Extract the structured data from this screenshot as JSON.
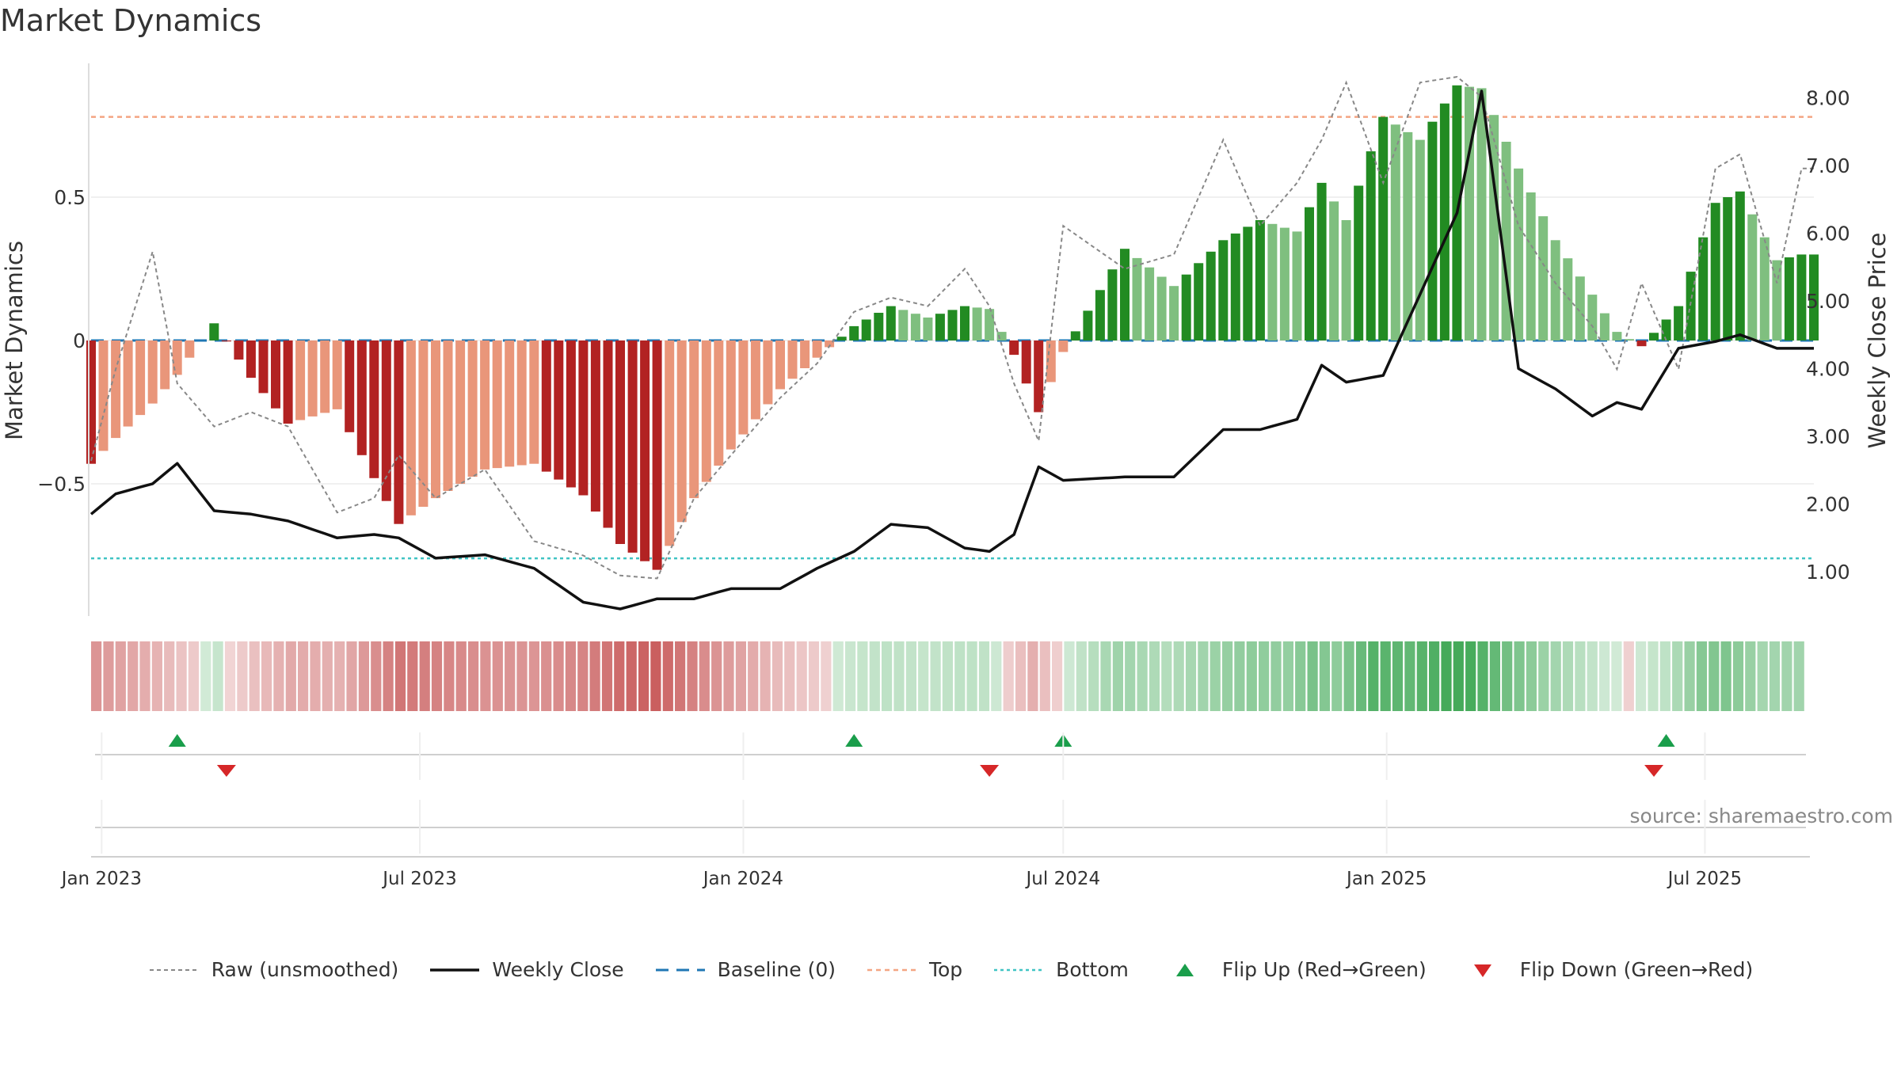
{
  "title": "Market Dynamics",
  "source": "source: sharemaestro.com",
  "colors": {
    "strong_red": "#b22222",
    "light_red": "#e9967a",
    "strong_green": "#228b22",
    "light_green": "#7fbf7f",
    "close": "#111111",
    "raw": "#888888",
    "baseline": "#1f77b4",
    "top": "#f4a582",
    "bottom": "#40c4c4",
    "flip_up": "#1a9e4b",
    "flip_down": "#d62728"
  },
  "legend": [
    {
      "label": "Raw (unsmoothed)",
      "style": "raw"
    },
    {
      "label": "Weekly Close",
      "style": "close"
    },
    {
      "label": "Baseline (0)",
      "style": "baseline"
    },
    {
      "label": "Top",
      "style": "top"
    },
    {
      "label": "Bottom",
      "style": "bottom"
    },
    {
      "label": "Flip Up (Red→Green)",
      "style": "flip_up"
    },
    {
      "label": "Flip Down (Green→Red)",
      "style": "flip_down"
    }
  ],
  "chart_data": {
    "type": "bar",
    "title": "Market Dynamics",
    "ylabel": "Market Dynamics",
    "y2label": "Weekly Close Price",
    "ylim": [
      -0.97,
      0.97
    ],
    "y2lim": [
      0.0,
      8.5
    ],
    "yticks": [
      {
        "v": 0.5,
        "label": "0.5"
      },
      {
        "v": 0,
        "label": "0"
      },
      {
        "v": -0.5,
        "label": "−0.5"
      }
    ],
    "y2ticks": [
      "1.00",
      "2.00",
      "3.00",
      "4.00",
      "5.00",
      "6.00",
      "7.00",
      "8.00"
    ],
    "x_start": "2022-12-26",
    "x_end": "2025-09-01",
    "xticks": [
      {
        "date": "2023-01-01",
        "label": "Jan 2023"
      },
      {
        "date": "2023-07-01",
        "label": "Jul 2023"
      },
      {
        "date": "2024-01-01",
        "label": "Jan 2024"
      },
      {
        "date": "2024-07-01",
        "label": "Jul 2024"
      },
      {
        "date": "2025-01-01",
        "label": "Jan 2025"
      },
      {
        "date": "2025-07-01",
        "label": "Jul 2025"
      }
    ],
    "top_level": 0.78,
    "bottom_level": -0.76,
    "baseline": 0,
    "anchors": {
      "dates": [
        "2022-12-26",
        "2023-01-09",
        "2023-01-30",
        "2023-02-13",
        "2023-03-06",
        "2023-03-27",
        "2023-04-17",
        "2023-05-15",
        "2023-06-05",
        "2023-06-19",
        "2023-07-10",
        "2023-08-07",
        "2023-09-04",
        "2023-10-02",
        "2023-10-23",
        "2023-11-13",
        "2023-12-04",
        "2023-12-25",
        "2024-01-22",
        "2024-02-12",
        "2024-03-04",
        "2024-03-25",
        "2024-04-15",
        "2024-05-06",
        "2024-05-20",
        "2024-06-03",
        "2024-06-17",
        "2024-07-01",
        "2024-08-05",
        "2024-09-02",
        "2024-09-30",
        "2024-10-21",
        "2024-11-11",
        "2024-11-25",
        "2024-12-09",
        "2024-12-30",
        "2025-01-20",
        "2025-02-10",
        "2025-02-24",
        "2025-03-17",
        "2025-04-07",
        "2025-04-28",
        "2025-05-12",
        "2025-05-26",
        "2025-06-16",
        "2025-07-07",
        "2025-07-21",
        "2025-08-11",
        "2025-08-25"
      ],
      "dynamics": [
        -0.43,
        -0.34,
        -0.22,
        -0.12,
        0.06,
        -0.13,
        -0.29,
        -0.24,
        -0.48,
        -0.64,
        -0.55,
        -0.45,
        -0.43,
        -0.54,
        -0.71,
        -0.8,
        -0.55,
        -0.38,
        -0.17,
        -0.06,
        0.05,
        0.12,
        0.08,
        0.12,
        0.11,
        -0.05,
        -0.25,
        -0.04,
        0.32,
        0.19,
        0.35,
        0.42,
        0.38,
        0.55,
        0.42,
        0.78,
        0.7,
        0.89,
        0.88,
        0.6,
        0.35,
        0.16,
        0.03,
        -0.02,
        0.12,
        0.48,
        0.52,
        0.28,
        0.3
      ],
      "raw": [
        -0.42,
        -0.1,
        0.31,
        -0.15,
        -0.3,
        -0.25,
        -0.3,
        -0.6,
        -0.55,
        -0.4,
        -0.55,
        -0.45,
        -0.7,
        -0.75,
        -0.82,
        -0.83,
        -0.55,
        -0.4,
        -0.2,
        -0.08,
        0.1,
        0.15,
        0.12,
        0.25,
        0.12,
        -0.15,
        -0.35,
        0.4,
        0.25,
        0.3,
        0.7,
        0.4,
        0.55,
        0.7,
        0.9,
        0.55,
        0.9,
        0.92,
        0.85,
        0.4,
        0.2,
        0.05,
        -0.1,
        0.2,
        -0.1,
        0.6,
        0.65,
        0.2,
        0.6
      ],
      "close": [
        1.85,
        2.15,
        2.3,
        2.6,
        1.9,
        1.85,
        1.75,
        1.5,
        1.55,
        1.5,
        1.2,
        1.25,
        1.05,
        0.55,
        0.45,
        0.6,
        0.6,
        0.75,
        0.75,
        1.05,
        1.3,
        1.7,
        1.65,
        1.35,
        1.3,
        1.55,
        2.55,
        2.35,
        2.4,
        2.4,
        3.1,
        3.1,
        3.25,
        4.05,
        3.8,
        3.9,
        5.1,
        6.3,
        8.1,
        4.0,
        3.7,
        3.3,
        3.5,
        3.4,
        4.3,
        4.4,
        4.5,
        4.3,
        4.3
      ]
    },
    "flips": [
      {
        "date": "2023-02-13",
        "type": "up"
      },
      {
        "date": "2023-03-13",
        "type": "down"
      },
      {
        "date": "2024-03-04",
        "type": "up"
      },
      {
        "date": "2024-05-20",
        "type": "down"
      },
      {
        "date": "2024-07-01",
        "type": "up"
      },
      {
        "date": "2025-06-02",
        "type": "down"
      },
      {
        "date": "2025-06-09",
        "type": "up"
      }
    ]
  }
}
